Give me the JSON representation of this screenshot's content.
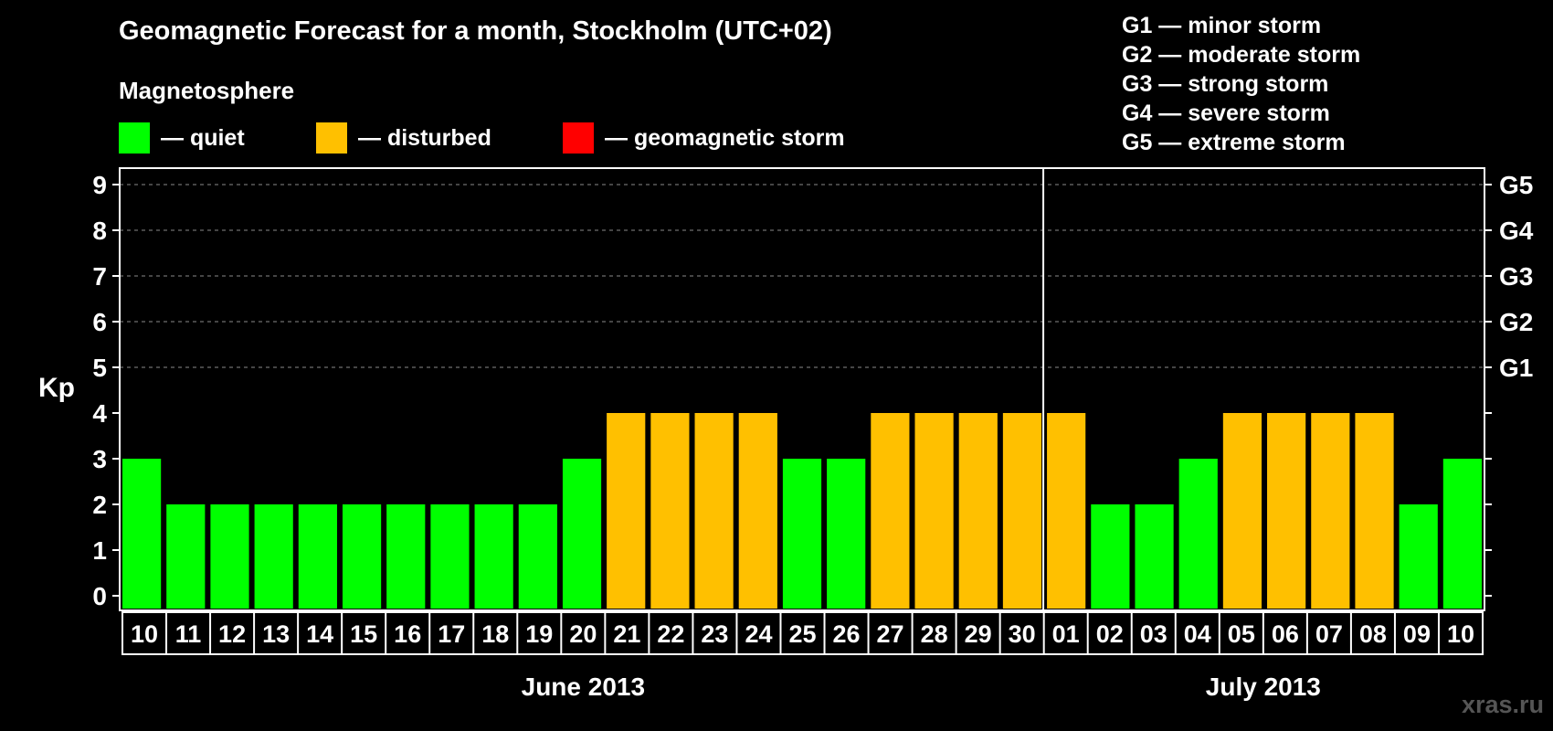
{
  "chart_data": {
    "type": "bar",
    "title": "Geomagnetic Forecast for a month, Stockholm (UTC+02)",
    "subtitle": "Magnetosphere",
    "ylabel": "Kp",
    "ylim": [
      0,
      9
    ],
    "yticks": [
      "0",
      "1",
      "2",
      "3",
      "4",
      "5",
      "6",
      "7",
      "8",
      "9"
    ],
    "right_axis": [
      {
        "kp": 5,
        "label": "G1"
      },
      {
        "kp": 6,
        "label": "G2"
      },
      {
        "kp": 7,
        "label": "G3"
      },
      {
        "kp": 8,
        "label": "G4"
      },
      {
        "kp": 9,
        "label": "G5"
      }
    ],
    "categories": [
      "10",
      "11",
      "12",
      "13",
      "14",
      "15",
      "16",
      "17",
      "18",
      "19",
      "20",
      "21",
      "22",
      "23",
      "24",
      "25",
      "26",
      "27",
      "28",
      "29",
      "30",
      "01",
      "02",
      "03",
      "04",
      "05",
      "06",
      "07",
      "08",
      "09",
      "10"
    ],
    "values": [
      3,
      2,
      2,
      2,
      2,
      2,
      2,
      2,
      2,
      2,
      3,
      4,
      4,
      4,
      4,
      3,
      3,
      4,
      4,
      4,
      4,
      4,
      2,
      2,
      3,
      4,
      4,
      4,
      4,
      2,
      3
    ],
    "months": [
      {
        "label": "June 2013",
        "start": 0,
        "end": 20
      },
      {
        "label": "July 2013",
        "start": 21,
        "end": 30
      }
    ],
    "magnetosphere_legend": [
      {
        "label": "— quiet",
        "color": "#00ff00",
        "max_kp": 3
      },
      {
        "label": "— disturbed",
        "color": "#ffc000",
        "max_kp": 4
      },
      {
        "label": "— geomagnetic storm",
        "color": "#ff0000",
        "max_kp": 9
      }
    ],
    "storm_legend": [
      "G1 — minor storm",
      "G2 — moderate storm",
      "G3 — strong storm",
      "G4 — severe storm",
      "G5 — extreme storm"
    ],
    "grid_dashed_from_kp": 5
  },
  "watermark": "xras.ru"
}
